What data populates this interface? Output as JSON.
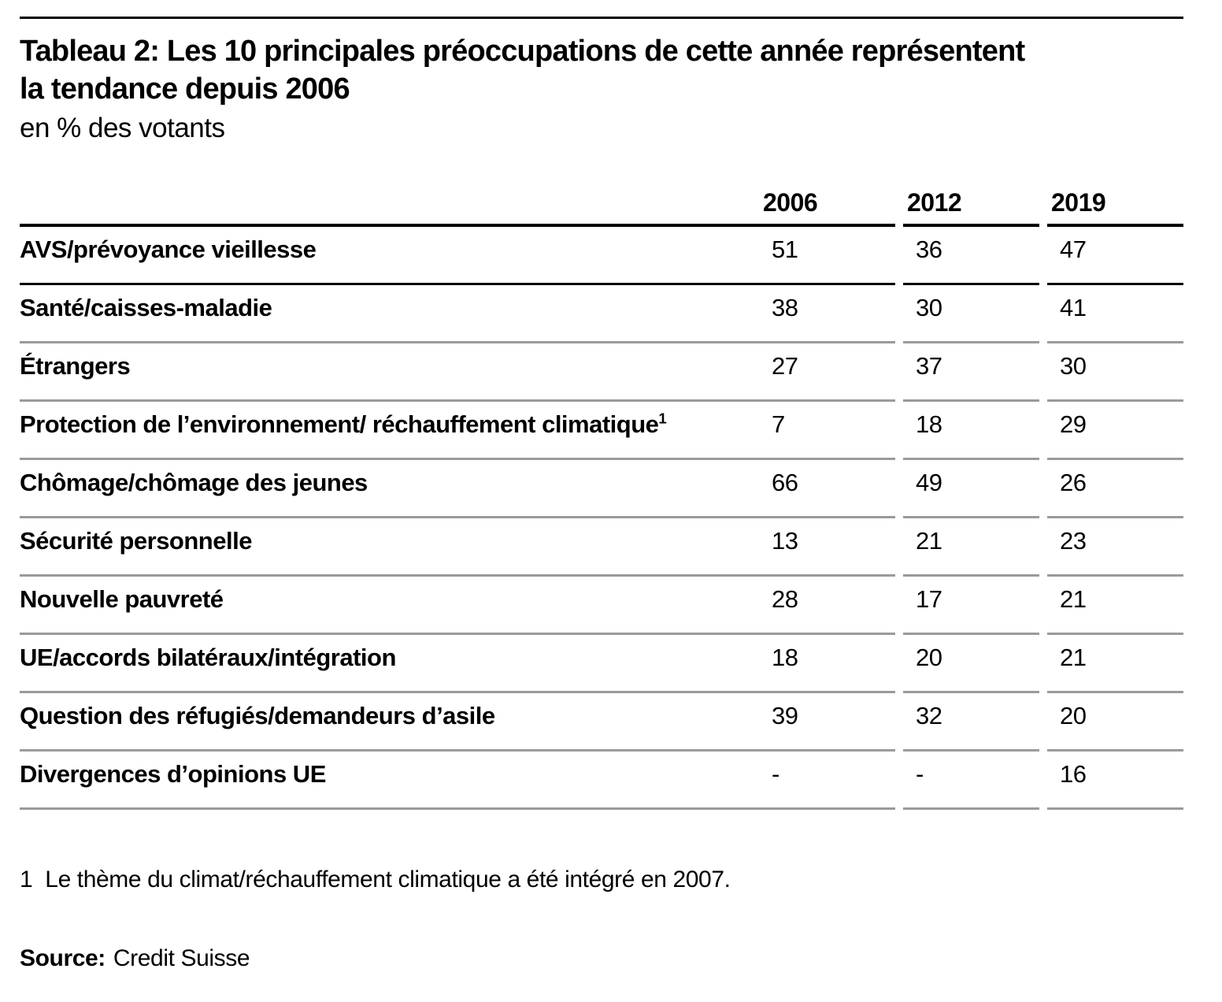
{
  "header": {
    "title_line1": "Tableau 2: Les 10 principales préoccupations de cette année représentent",
    "title_line2": "la tendance depuis 2006",
    "subtitle": "en % des votants"
  },
  "table": {
    "col_headers": [
      "2006",
      "2012",
      "2019"
    ],
    "rows": [
      {
        "label": "AVS/prévoyance vieillesse",
        "values": [
          "51",
          "36",
          "47"
        ]
      },
      {
        "label": "Santé/caisses-maladie",
        "values": [
          "38",
          "30",
          "41"
        ]
      },
      {
        "label": "Étrangers",
        "values": [
          "27",
          "37",
          "30"
        ]
      },
      {
        "label": "Protection de l’environnement/ réchauffement climatique",
        "sup": "1",
        "values": [
          "7",
          "18",
          "29"
        ]
      },
      {
        "label": "Chômage/chômage des jeunes",
        "values": [
          "66",
          "49",
          "26"
        ]
      },
      {
        "label": "Sécurité personnelle",
        "values": [
          "13",
          "21",
          "23"
        ]
      },
      {
        "label": "Nouvelle pauvreté",
        "values": [
          "28",
          "17",
          "21"
        ]
      },
      {
        "label": "UE/accords bilatéraux/intégration",
        "values": [
          "18",
          "20",
          "21"
        ]
      },
      {
        "label": "Question des réfugiés/demandeurs d’asile",
        "values": [
          "39",
          "32",
          "20"
        ]
      },
      {
        "label": "Divergences d’opinions UE",
        "values": [
          "-",
          "-",
          "16"
        ]
      }
    ]
  },
  "footnote": {
    "marker": "1",
    "text": "Le thème du climat/réchauffement climatique a été intégré en 2007."
  },
  "source": {
    "label": "Source:",
    "text": "Credit Suisse"
  },
  "colors": {
    "rule_black": "#000000",
    "rule_gray": "#9a9a9a",
    "text": "#000000",
    "background": "#ffffff"
  },
  "chart_data": {
    "type": "table",
    "title": "Tableau 2: Les 10 principales préoccupations de cette année représentent la tendance depuis 2006",
    "subtitle_unit": "en % des votants",
    "categories": [
      "AVS/prévoyance vieillesse",
      "Santé/caisses-maladie",
      "Étrangers",
      "Protection de l’environnement/ réchauffement climatique",
      "Chômage/chômage des jeunes",
      "Sécurité personnelle",
      "Nouvelle pauvreté",
      "UE/accords bilatéraux/intégration",
      "Question des réfugiés/demandeurs d’asile",
      "Divergences d’opinions UE"
    ],
    "series": [
      {
        "name": "2006",
        "values": [
          51,
          38,
          27,
          7,
          66,
          13,
          28,
          18,
          39,
          null
        ]
      },
      {
        "name": "2012",
        "values": [
          36,
          30,
          37,
          18,
          49,
          21,
          17,
          20,
          32,
          null
        ]
      },
      {
        "name": "2019",
        "values": [
          47,
          41,
          30,
          29,
          26,
          23,
          21,
          21,
          20,
          16
        ]
      }
    ],
    "footnote": "1 Le thème du climat/réchauffement climatique a été intégré en 2007.",
    "source": "Credit Suisse"
  }
}
